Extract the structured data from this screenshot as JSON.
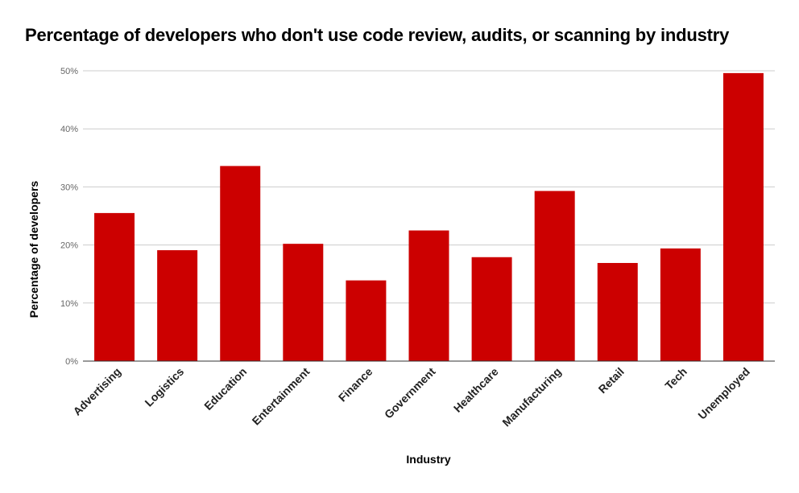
{
  "chart_data": {
    "type": "bar",
    "title": "Percentage of developers who don't use code review, audits, or scanning by industry",
    "xlabel": "Industry",
    "ylabel": "Percentage of developers",
    "categories": [
      "Advertising",
      "Logistics",
      "Education",
      "Entertainment",
      "Finance",
      "Government",
      "Healthcare",
      "Manufacturing",
      "Retail",
      "Tech",
      "Unemployed"
    ],
    "values": [
      25.5,
      19.1,
      33.6,
      20.2,
      13.9,
      22.5,
      17.9,
      29.3,
      16.9,
      19.4,
      49.6
    ],
    "ylim": [
      0,
      50
    ],
    "yticks": [
      "0%",
      "10%",
      "20%",
      "30%",
      "40%",
      "50%"
    ],
    "grid": true,
    "legend": "none",
    "bar_color": "#cc0000"
  }
}
